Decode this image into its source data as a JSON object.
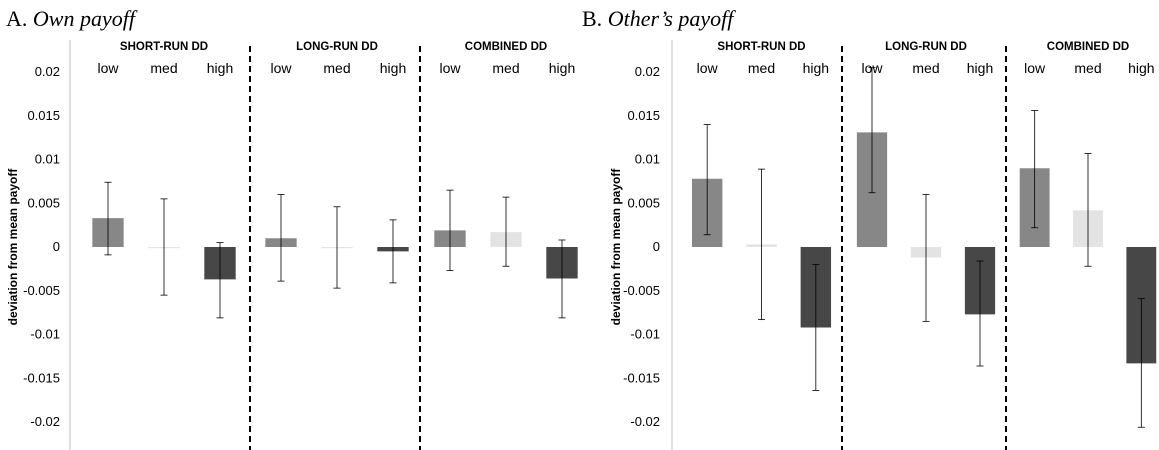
{
  "chart_data": [
    {
      "type": "bar",
      "panel_label": "A.",
      "title": "Own payoff",
      "ylabel": "deviation from mean payoff",
      "ylim": [
        -0.02,
        0.02
      ],
      "yticks": [
        "0.02",
        "0.015",
        "0.01",
        "0.005",
        "0",
        "-0.005",
        "-0.01",
        "-0.015",
        "-0.02"
      ],
      "categories": [
        "low",
        "med",
        "high"
      ],
      "colors": {
        "low": "#878787",
        "med": "#e3e3e3",
        "high": "#474747"
      },
      "groups": [
        {
          "name": "SHORT-RUN DD",
          "values": [
            0.0033,
            0.0,
            -0.0037
          ],
          "err_low": [
            -0.0009,
            -0.0055,
            -0.0081
          ],
          "err_high": [
            0.0074,
            0.0055,
            0.0005
          ]
        },
        {
          "name": "LONG-RUN DD",
          "values": [
            0.001,
            0.0,
            -0.0005
          ],
          "err_low": [
            -0.0039,
            -0.0047,
            -0.0041
          ],
          "err_high": [
            0.006,
            0.0046,
            0.0031
          ]
        },
        {
          "name": "COMBINED DD",
          "values": [
            0.0019,
            0.0017,
            -0.0036
          ],
          "err_low": [
            -0.0027,
            -0.0022,
            -0.0081
          ],
          "err_high": [
            0.0065,
            0.0057,
            0.0008
          ]
        }
      ]
    },
    {
      "type": "bar",
      "panel_label": "B.",
      "title": "Other’s payoff",
      "ylabel": "deviation from mean payoff",
      "ylim": [
        -0.02,
        0.02
      ],
      "yticks": [
        "0.02",
        "0.015",
        "0.01",
        "0.005",
        "0",
        "-0.005",
        "-0.01",
        "-0.015",
        "-0.02"
      ],
      "categories": [
        "low",
        "med",
        "high"
      ],
      "colors": {
        "low": "#878787",
        "med": "#e3e3e3",
        "high": "#474747"
      },
      "groups": [
        {
          "name": "SHORT-RUN DD",
          "values": [
            0.0078,
            0.0003,
            -0.0092
          ],
          "err_low": [
            0.0014,
            -0.0083,
            -0.0164
          ],
          "err_high": [
            0.014,
            0.0089,
            -0.002
          ]
        },
        {
          "name": "LONG-RUN DD",
          "values": [
            0.0131,
            -0.0012,
            -0.0077
          ],
          "err_low": [
            0.0062,
            -0.0085,
            -0.0136
          ],
          "err_high": [
            0.0205,
            0.006,
            -0.0016
          ]
        },
        {
          "name": "COMBINED DD",
          "values": [
            0.009,
            0.0042,
            -0.0133
          ],
          "err_low": [
            0.0022,
            -0.0022,
            -0.0206
          ],
          "err_high": [
            0.0156,
            0.0107,
            -0.0059
          ]
        }
      ]
    }
  ]
}
